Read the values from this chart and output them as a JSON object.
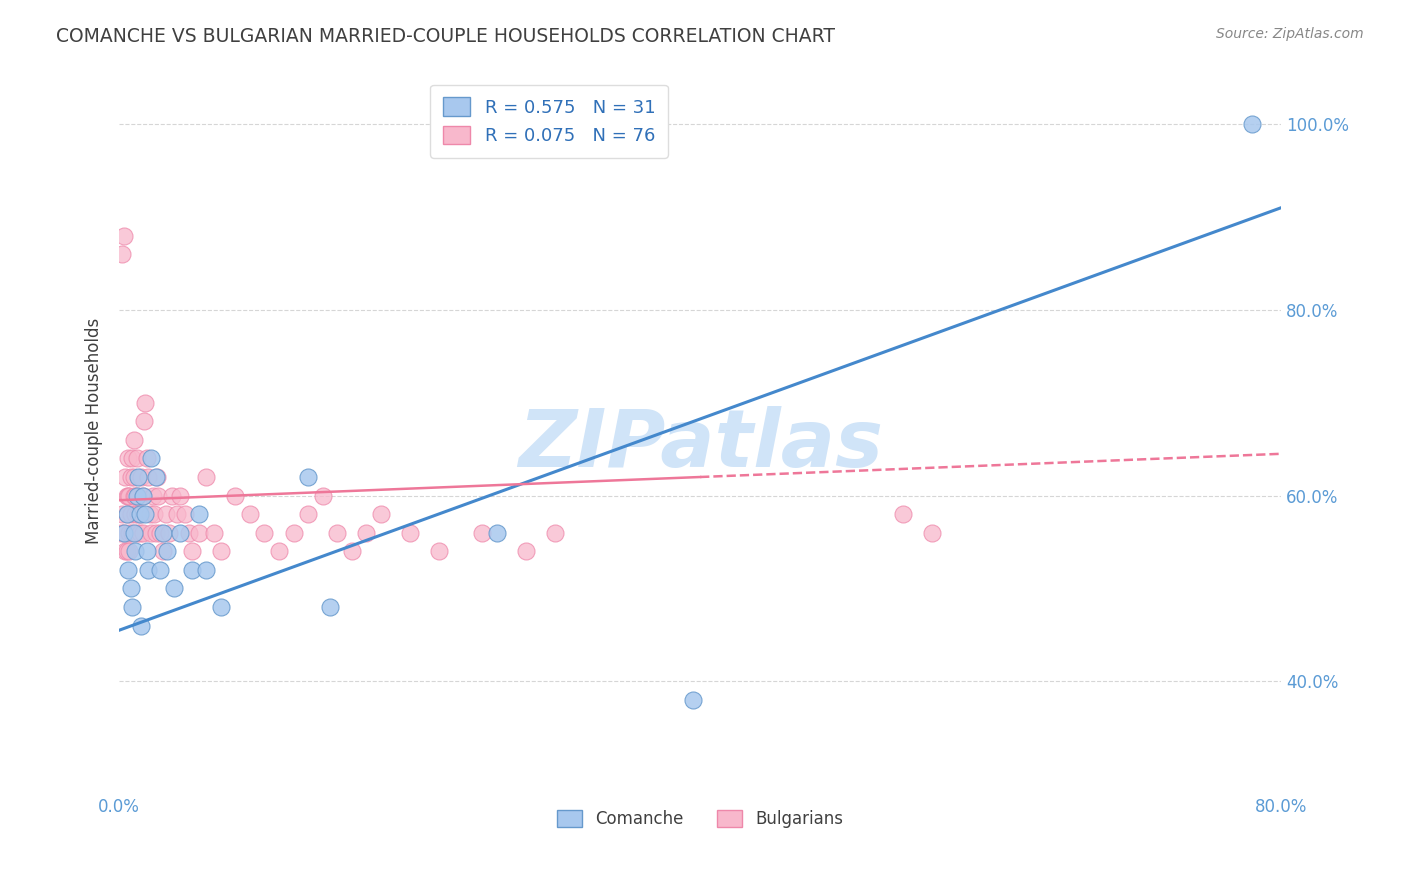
{
  "title": "COMANCHE VS BULGARIAN MARRIED-COUPLE HOUSEHOLDS CORRELATION CHART",
  "source": "Source: ZipAtlas.com",
  "ylabel": "Married-couple Households",
  "xlabel": "",
  "xlim": [
    0.0,
    0.8
  ],
  "ylim": [
    0.28,
    1.06
  ],
  "ytick_labels": [
    "40.0%",
    "60.0%",
    "80.0%",
    "100.0%"
  ],
  "ytick_vals": [
    0.4,
    0.6,
    0.8,
    1.0
  ],
  "xtick_labels": [
    "0.0%",
    "",
    "",
    "",
    "",
    "",
    "",
    "",
    "80.0%"
  ],
  "xtick_vals": [
    0.0,
    0.1,
    0.2,
    0.3,
    0.4,
    0.5,
    0.6,
    0.7,
    0.8
  ],
  "comanche_R": 0.575,
  "comanche_N": 31,
  "bulgarian_R": 0.075,
  "bulgarian_N": 76,
  "comanche_color": "#A8C8EE",
  "bulgarian_color": "#F8B8CC",
  "comanche_edge": "#6699CC",
  "bulgarian_edge": "#EE88AA",
  "trend_comanche_color": "#4488CC",
  "trend_bulgarian_color": "#EE7799",
  "background_color": "#FFFFFF",
  "grid_color": "#CCCCCC",
  "title_color": "#404040",
  "axis_color": "#5B9BD5",
  "legend_text_color": "#3070B8",
  "watermark": "ZIPatlas",
  "watermark_color": "#D0E4F8",
  "comanche_x": [
    0.003,
    0.005,
    0.006,
    0.008,
    0.009,
    0.01,
    0.011,
    0.012,
    0.013,
    0.014,
    0.015,
    0.016,
    0.018,
    0.019,
    0.02,
    0.022,
    0.025,
    0.028,
    0.03,
    0.033,
    0.038,
    0.042,
    0.05,
    0.055,
    0.06,
    0.07,
    0.13,
    0.145,
    0.26,
    0.395,
    0.78
  ],
  "comanche_y": [
    0.56,
    0.58,
    0.52,
    0.5,
    0.48,
    0.56,
    0.54,
    0.6,
    0.62,
    0.58,
    0.46,
    0.6,
    0.58,
    0.54,
    0.52,
    0.64,
    0.62,
    0.52,
    0.56,
    0.54,
    0.5,
    0.56,
    0.52,
    0.58,
    0.52,
    0.48,
    0.62,
    0.48,
    0.56,
    0.38,
    1.0
  ],
  "bulgarian_x": [
    0.001,
    0.002,
    0.002,
    0.003,
    0.003,
    0.004,
    0.004,
    0.005,
    0.005,
    0.005,
    0.006,
    0.006,
    0.007,
    0.007,
    0.007,
    0.008,
    0.008,
    0.009,
    0.009,
    0.01,
    0.01,
    0.01,
    0.011,
    0.011,
    0.012,
    0.012,
    0.013,
    0.013,
    0.014,
    0.015,
    0.015,
    0.016,
    0.016,
    0.017,
    0.018,
    0.019,
    0.02,
    0.021,
    0.022,
    0.023,
    0.024,
    0.025,
    0.026,
    0.027,
    0.028,
    0.03,
    0.032,
    0.034,
    0.036,
    0.04,
    0.042,
    0.045,
    0.048,
    0.05,
    0.055,
    0.06,
    0.065,
    0.07,
    0.08,
    0.09,
    0.1,
    0.11,
    0.12,
    0.13,
    0.14,
    0.15,
    0.16,
    0.17,
    0.18,
    0.2,
    0.22,
    0.25,
    0.28,
    0.3,
    0.54,
    0.56
  ],
  "bulgarian_y": [
    0.56,
    0.58,
    0.86,
    0.88,
    0.56,
    0.54,
    0.62,
    0.54,
    0.6,
    0.58,
    0.6,
    0.64,
    0.56,
    0.6,
    0.54,
    0.62,
    0.58,
    0.56,
    0.64,
    0.6,
    0.66,
    0.62,
    0.6,
    0.58,
    0.56,
    0.64,
    0.6,
    0.58,
    0.56,
    0.62,
    0.58,
    0.6,
    0.56,
    0.68,
    0.7,
    0.64,
    0.62,
    0.58,
    0.56,
    0.6,
    0.58,
    0.56,
    0.62,
    0.6,
    0.56,
    0.54,
    0.58,
    0.56,
    0.6,
    0.58,
    0.6,
    0.58,
    0.56,
    0.54,
    0.56,
    0.62,
    0.56,
    0.54,
    0.6,
    0.58,
    0.56,
    0.54,
    0.56,
    0.58,
    0.6,
    0.56,
    0.54,
    0.56,
    0.58,
    0.56,
    0.54,
    0.56,
    0.54,
    0.56,
    0.58,
    0.56
  ],
  "trend_com_x0": 0.0,
  "trend_com_y0": 0.455,
  "trend_com_x1": 0.8,
  "trend_com_y1": 0.91,
  "trend_bul_x0": 0.0,
  "trend_bul_y0": 0.595,
  "trend_bul_x1": 0.8,
  "trend_bul_y1": 0.645,
  "trend_bul_dash_start": 0.4
}
